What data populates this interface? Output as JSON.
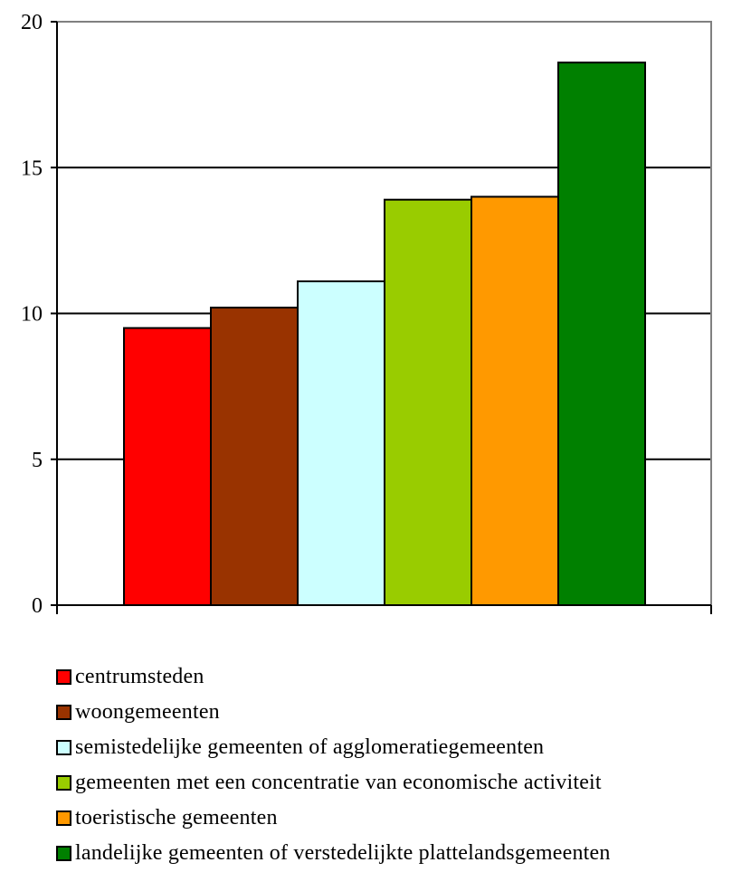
{
  "chart_data": {
    "type": "bar",
    "categories": [
      "centrumsteden",
      "woongemeenten",
      "semistedelijke gemeenten of agglomeratiegemeenten",
      "gemeenten met een concentratie van economische activiteit",
      "toeristische gemeenten",
      "landelijke gemeenten of verstedelijkte plattelandsgemeenten"
    ],
    "values": [
      9.5,
      10.2,
      11.1,
      13.9,
      14.0,
      18.6
    ],
    "colors": [
      "#ff0000",
      "#993300",
      "#ccffff",
      "#99cc00",
      "#ff9900",
      "#008000"
    ],
    "ylim": [
      0,
      20
    ],
    "yticks": [
      "0",
      "5",
      "10",
      "15",
      "20"
    ],
    "grid": true,
    "legend_position": "bottom"
  }
}
